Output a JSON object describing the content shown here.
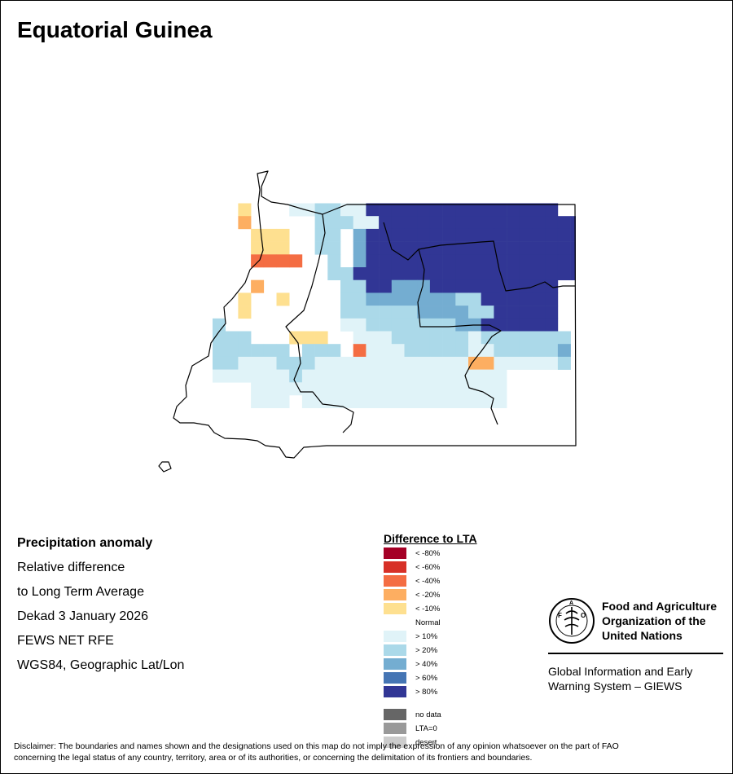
{
  "title": "Equatorial Guinea",
  "info": {
    "heading": "Precipitation anomaly",
    "lines": [
      "Relative difference",
      "to Long Term Average",
      "Dekad 3 January 2026",
      "FEWS NET RFE",
      "WGS84, Geographic Lat/Lon"
    ]
  },
  "legend": {
    "title": "Difference to LTA",
    "normal_label": "Normal",
    "classes": [
      {
        "label": "< -80%",
        "color": "#a50026"
      },
      {
        "label": "< -60%",
        "color": "#d73027"
      },
      {
        "label": "< -40%",
        "color": "#f46d43"
      },
      {
        "label": "< -20%",
        "color": "#fdae61"
      },
      {
        "label": "< -10%",
        "color": "#fee090"
      },
      {
        "label": "> 10%",
        "color": "#e0f3f8"
      },
      {
        "label": "> 20%",
        "color": "#abd9e9"
      },
      {
        "label": "> 40%",
        "color": "#74add1"
      },
      {
        "label": "> 60%",
        "color": "#4575b4"
      },
      {
        "label": "> 80%",
        "color": "#313695"
      }
    ],
    "special": [
      {
        "label": "no data",
        "color": "#666666"
      },
      {
        "label": "LTA=0",
        "color": "#999999"
      },
      {
        "label": "desert",
        "color": "#cccccc"
      }
    ]
  },
  "map": {
    "anomaly_class_grid": [
      "000000000000000000000000000",
      "000000000000000000000000000",
      "000000000000000000000000000",
      "000000000000000000000000000",
      "000000000000000000000000000",
      "005000667766999999999999999",
      "00400000777669999999999999999",
      "00055500770899999999999999999",
      "00055500770899999999999999999",
      "00033330070899999999999999999",
      "00000000077999999999999999999",
      "000400000077998889999999999",
      "005005000077888888877999999",
      "005000000077777788887799999",
      "700000000066777777788999999",
      "7770005550066677777767777777",
      "7777770777036667777766777778",
      "7766677766666666666644666667",
      "6666667666666666666666600000",
      "0006666666666666666666600000",
      "000666066666666666666660000",
      "000000000000000000000000000"
    ]
  },
  "fao": {
    "name_lines": [
      "Food and Agriculture",
      "Organization of the",
      "United Nations"
    ],
    "system_lines": [
      "Global Information and Early",
      "Warning System – GIEWS"
    ]
  },
  "disclaimer_lines": [
    "Disclaimer: The boundaries and names shown and the designations used on this map do not imply the expression of any opinion whatsoever on the part of FAO",
    "concerning the legal status of any country, territory, area or of its authorities, or concerning the delimitation of its frontiers and boundaries."
  ]
}
